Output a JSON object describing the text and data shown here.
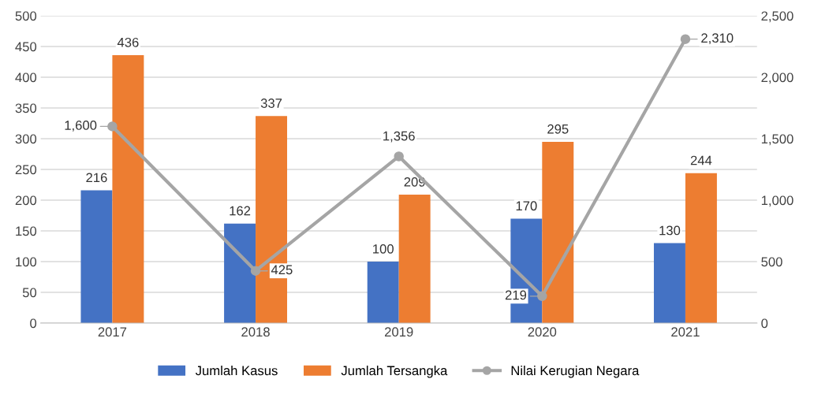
{
  "chart_data": {
    "type": "bar",
    "categories": [
      "2017",
      "2018",
      "2019",
      "2020",
      "2021"
    ],
    "series": [
      {
        "name": "Jumlah Kasus",
        "color": "#4472c4",
        "values": [
          216,
          162,
          100,
          170,
          130
        ],
        "data_labels": true
      },
      {
        "name": "Jumlah Tersangka",
        "color": "#ed7d31",
        "values": [
          436,
          337,
          209,
          295,
          244
        ],
        "data_labels": true
      },
      {
        "name": "Nilai Kerugian Negara",
        "type": "line",
        "axis": "y2",
        "color": "#a5a5a5",
        "marker": "circle",
        "line_style": "solid",
        "values": [
          1600,
          425,
          1356,
          219,
          2310
        ],
        "value_labels": [
          "1,600",
          "425",
          "1,356",
          "219",
          "2,310"
        ]
      }
    ],
    "ylim": [
      0,
      500
    ],
    "yticks": [
      0,
      50,
      100,
      150,
      200,
      250,
      300,
      350,
      400,
      450,
      500
    ],
    "y2lim": [
      0,
      2500
    ],
    "y2ticks": [
      0,
      {
        "value": 500,
        "label": "500"
      },
      {
        "value": 1000,
        "label": "1,000"
      },
      {
        "value": 1500,
        "label": "1,500"
      },
      {
        "value": 2000,
        "label": "2,000"
      },
      {
        "value": 2500,
        "label": "2,500"
      }
    ],
    "grid": "y",
    "legend": "bottom"
  }
}
